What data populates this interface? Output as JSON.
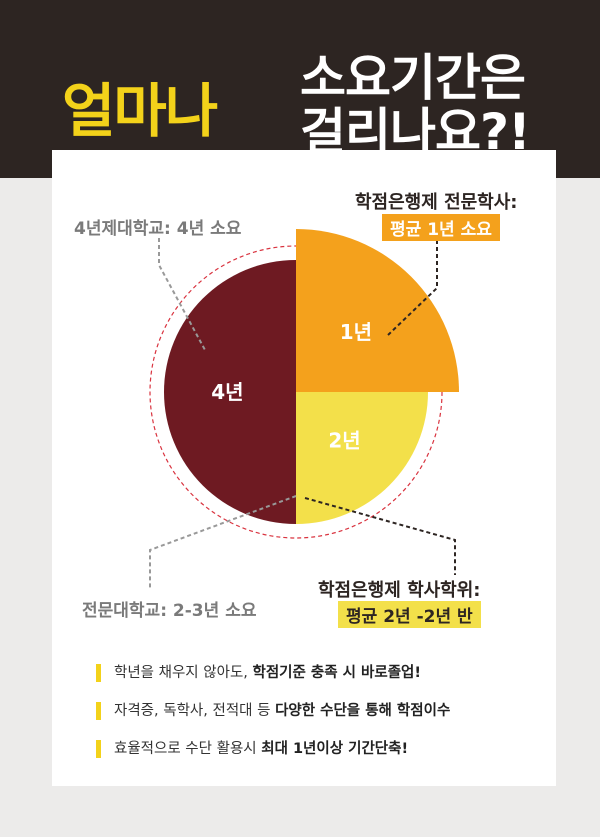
{
  "header": {
    "highlight": "얼마나",
    "line1": "소요기간은",
    "line2": "걸리나요?!"
  },
  "colors": {
    "maroon": "#6e1a22",
    "orange": "#f4a11c",
    "yellow": "#f3e04a",
    "dark": "#2d2522",
    "dashed_circle": "#d9333f"
  },
  "chart_data": {
    "type": "pie",
    "slices": [
      {
        "label": "1년",
        "value": 1,
        "color": "#f4a11c",
        "emphasis": "exploded"
      },
      {
        "label": "2년",
        "value": 1,
        "color": "#f3e04a"
      },
      {
        "label": "4년",
        "value": 2,
        "color": "#6e1a22"
      }
    ]
  },
  "callouts": {
    "university": "4년제대학교: 4년 소요",
    "college": "전문대학교: 2-3년 소요",
    "bank_associate_title": "학점은행제 전문학사:",
    "bank_associate_pill": "평균 1년 소요",
    "bank_bachelor_title": "학점은행제 학사학위:",
    "bank_bachelor_pill": "평균 2년 -2년 반"
  },
  "bullets": [
    {
      "plain": "학년을 채우지 않아도, ",
      "bold": "학점기준 충족 시 바로졸업!"
    },
    {
      "plain": "자격증, 독학사, 전적대 등 ",
      "bold": "다양한 수단을 통해 학점이수"
    },
    {
      "plain": "효율적으로 수단 활용시 ",
      "bold": "최대 1년이상 기간단축!"
    }
  ]
}
